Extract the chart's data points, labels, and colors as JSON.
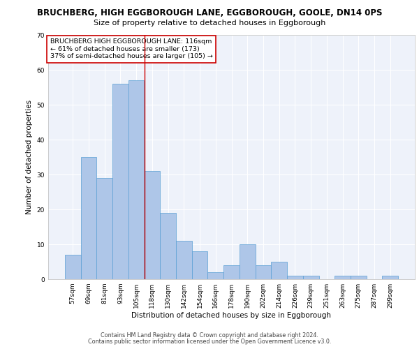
{
  "title_line1": "BRUCHBERG, HIGH EGGBOROUGH LANE, EGGBOROUGH, GOOLE, DN14 0PS",
  "title_line2": "Size of property relative to detached houses in Eggborough",
  "xlabel": "Distribution of detached houses by size in Eggborough",
  "ylabel": "Number of detached properties",
  "footer_line1": "Contains HM Land Registry data © Crown copyright and database right 2024.",
  "footer_line2": "Contains public sector information licensed under the Open Government Licence v3.0.",
  "categories": [
    "57sqm",
    "69sqm",
    "81sqm",
    "93sqm",
    "105sqm",
    "118sqm",
    "130sqm",
    "142sqm",
    "154sqm",
    "166sqm",
    "178sqm",
    "190sqm",
    "202sqm",
    "214sqm",
    "226sqm",
    "239sqm",
    "251sqm",
    "263sqm",
    "275sqm",
    "287sqm",
    "299sqm"
  ],
  "values": [
    7,
    35,
    29,
    56,
    57,
    31,
    19,
    11,
    8,
    2,
    4,
    10,
    4,
    5,
    1,
    1,
    0,
    1,
    1,
    0,
    1
  ],
  "bar_color": "#aec6e8",
  "bar_edge_color": "#5a9fd4",
  "reference_line_color": "#cc0000",
  "annotation_text": "BRUCHBERG HIGH EGGBOROUGH LANE: 116sqm\n← 61% of detached houses are smaller (173)\n37% of semi-detached houses are larger (105) →",
  "annotation_box_color": "white",
  "annotation_box_edge_color": "#cc0000",
  "ylim": [
    0,
    70
  ],
  "yticks": [
    0,
    10,
    20,
    30,
    40,
    50,
    60,
    70
  ],
  "background_color": "#eef2fa",
  "grid_color": "white",
  "title_fontsize": 8.5,
  "subtitle_fontsize": 8,
  "axis_label_fontsize": 7.5,
  "tick_fontsize": 6.5,
  "annotation_fontsize": 6.8,
  "footer_fontsize": 5.8
}
